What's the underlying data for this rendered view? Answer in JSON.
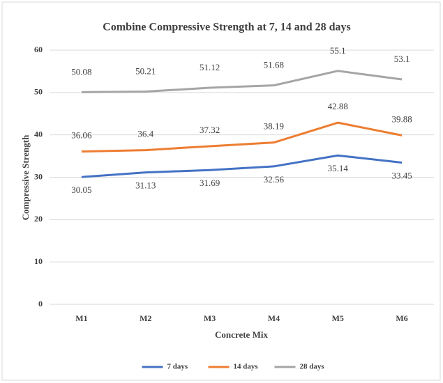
{
  "chart_data": {
    "type": "line",
    "title": "Combine Compressive Strength at 7, 14 and 28 days",
    "x_label": "Concrete Mix",
    "y_label": "Compressive Strength",
    "categories": [
      "M1",
      "M2",
      "M3",
      "M4",
      "M5",
      "M6"
    ],
    "series": [
      {
        "name": "7 days",
        "color": "#4472c4",
        "values": [
          30.05,
          31.13,
          31.69,
          32.56,
          35.14,
          33.45
        ]
      },
      {
        "name": "14 days",
        "color": "#ed7d31",
        "values": [
          36.06,
          36.4,
          37.32,
          38.19,
          42.88,
          39.88
        ]
      },
      {
        "name": "28 days",
        "color": "#a5a5a5",
        "values": [
          50.08,
          50.21,
          51.12,
          51.68,
          55.1,
          53.1
        ]
      }
    ],
    "ylim": [
      0,
      60
    ],
    "yticks": [
      0,
      10,
      20,
      30,
      40,
      50,
      60
    ],
    "grid": true,
    "legend": "bottom"
  }
}
